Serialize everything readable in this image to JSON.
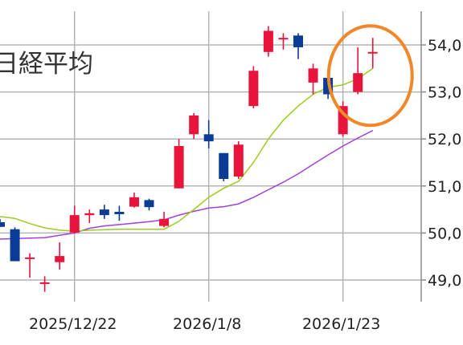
{
  "chart_data": {
    "type": "candlestick",
    "title": "日経平均",
    "y_ticks": [
      "54,0",
      "53,0",
      "52,0",
      "51,0",
      "50,0",
      "49,0"
    ],
    "y_tick_values": [
      54000,
      53000,
      52000,
      51000,
      50000,
      49000
    ],
    "ylim": [
      48600,
      54800
    ],
    "x_ticks": [
      "2025/12/22",
      "2026/1/8",
      "2026/1/23"
    ],
    "x_tick_index": [
      5,
      14,
      23
    ],
    "grid": true,
    "colors": {
      "up": "#e8143c",
      "down": "#0a3c96",
      "ma_short": "#9ccc1c",
      "ma_long": "#a040dc",
      "highlight": "#f0882a"
    },
    "candles": [
      {
        "open": 50230,
        "high": 50300,
        "low": 50130,
        "close": 50130
      },
      {
        "open": 50080,
        "high": 50120,
        "low": 49400,
        "close": 49400
      },
      {
        "open": 49480,
        "high": 49570,
        "low": 49050,
        "close": 49480
      },
      {
        "open": 48950,
        "high": 49080,
        "low": 48750,
        "close": 48950
      },
      {
        "open": 49380,
        "high": 49800,
        "low": 49220,
        "close": 49510
      },
      {
        "open": 50010,
        "high": 50580,
        "low": 49990,
        "close": 50380
      },
      {
        "open": 50380,
        "high": 50500,
        "low": 50210,
        "close": 50420
      },
      {
        "open": 50500,
        "high": 50600,
        "low": 50300,
        "close": 50380
      },
      {
        "open": 50450,
        "high": 50580,
        "low": 50260,
        "close": 50400
      },
      {
        "open": 50560,
        "high": 50860,
        "low": 50540,
        "close": 50760
      },
      {
        "open": 50700,
        "high": 50730,
        "low": 50480,
        "close": 50550
      },
      {
        "open": 50150,
        "high": 50450,
        "low": 50120,
        "close": 50300
      },
      {
        "open": 50950,
        "high": 52000,
        "low": 50950,
        "close": 51850
      },
      {
        "open": 52100,
        "high": 52550,
        "low": 52000,
        "close": 52500
      },
      {
        "open": 52100,
        "high": 52400,
        "low": 51800,
        "close": 51950
      },
      {
        "open": 51700,
        "high": 51700,
        "low": 51100,
        "close": 51150
      },
      {
        "open": 51200,
        "high": 51950,
        "low": 51150,
        "close": 51880
      },
      {
        "open": 52700,
        "high": 53550,
        "low": 52650,
        "close": 53450
      },
      {
        "open": 53850,
        "high": 54400,
        "low": 53750,
        "close": 54300
      },
      {
        "open": 54150,
        "high": 54250,
        "low": 53900,
        "close": 54150
      },
      {
        "open": 54200,
        "high": 54250,
        "low": 53700,
        "close": 53950
      },
      {
        "open": 53200,
        "high": 53600,
        "low": 52950,
        "close": 53500
      },
      {
        "open": 53300,
        "high": 53450,
        "low": 52850,
        "close": 52950
      },
      {
        "open": 52100,
        "high": 52800,
        "low": 52050,
        "close": 52700
      },
      {
        "open": 53000,
        "high": 53950,
        "low": 52950,
        "close": 53400
      },
      {
        "open": 53850,
        "high": 54150,
        "low": 53500,
        "close": 53850
      }
    ],
    "ma_short": [
      50350,
      50310,
      50200,
      50110,
      50060,
      50040,
      50060,
      50070,
      50080,
      50080,
      50080,
      50080,
      50250,
      50500,
      50760,
      50950,
      51100,
      51500,
      52000,
      52400,
      52700,
      52950,
      53100,
      53150,
      53280,
      53500
    ],
    "ma_long": [
      49870,
      49880,
      49890,
      49900,
      49950,
      50000,
      50100,
      50150,
      50180,
      50210,
      50240,
      50280,
      50380,
      50460,
      50530,
      50560,
      50620,
      50760,
      50920,
      51080,
      51260,
      51460,
      51660,
      51850,
      52020,
      52180
    ],
    "highlight_index": 25
  }
}
